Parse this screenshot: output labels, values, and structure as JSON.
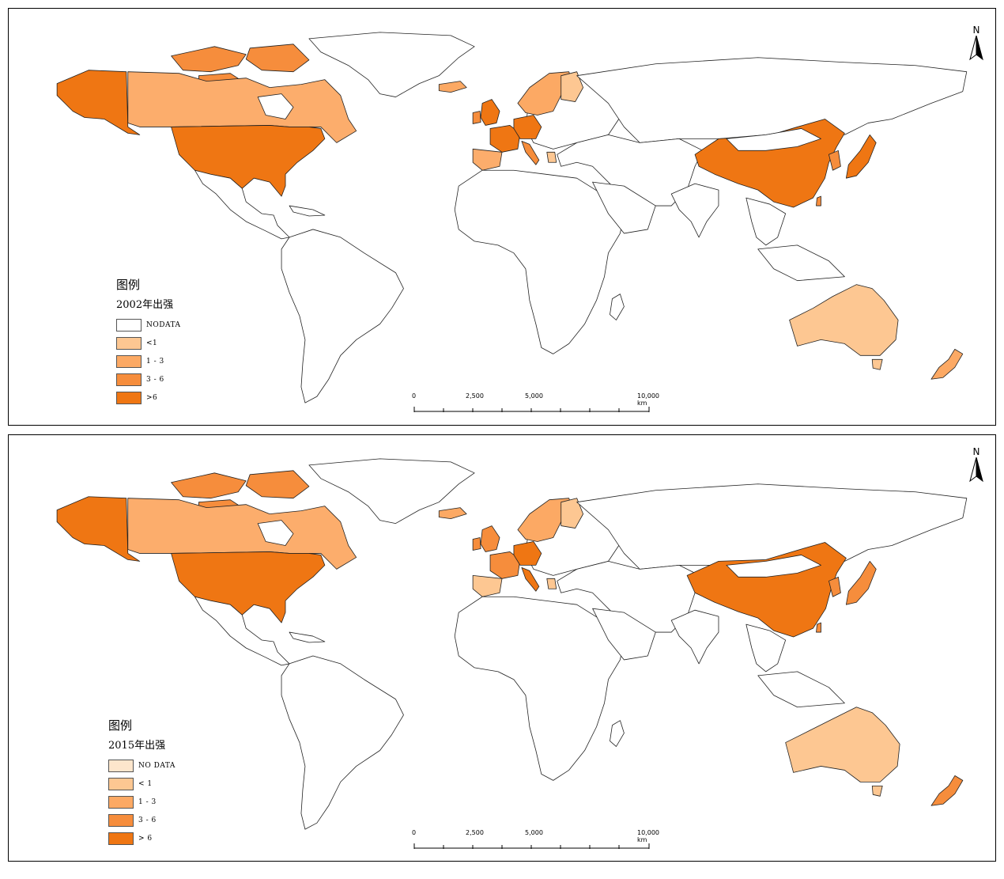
{
  "colors": {
    "nodata_top": "#ffffff",
    "nodata_bottom": "#fde6cc",
    "lt1": "#fdc792",
    "c1_3": "#fca964",
    "c3_6": "#f68d3c",
    "gt6": "#ef7613",
    "border": "#222222"
  },
  "maps": [
    {
      "legend_title": "图例",
      "legend_subtitle": "2002年出强",
      "classes": [
        {
          "label": "NODATA",
          "color": "#ffffff"
        },
        {
          "label": "<1",
          "color": "#fdc792"
        },
        {
          "label": "1 - 3",
          "color": "#fca964"
        },
        {
          "label": "3 - 6",
          "color": "#f68d3c"
        },
        {
          "label": ">6",
          "color": "#ef7613"
        }
      ],
      "north_label": "N",
      "scale_labels": [
        "0",
        "2,500",
        "5,000",
        "10,000 km"
      ]
    },
    {
      "legend_title": "图例",
      "legend_subtitle": "2015年出强",
      "classes": [
        {
          "label": "NO DATA",
          "color": "#fde6cc"
        },
        {
          "label": "< 1",
          "color": "#fdc792"
        },
        {
          "label": "1 - 3",
          "color": "#fca964"
        },
        {
          "label": "3 - 6",
          "color": "#f68d3c"
        },
        {
          "label": "> 6",
          "color": "#ef7613"
        }
      ],
      "north_label": "N",
      "scale_labels": [
        "0",
        "2,500",
        "5,000",
        "10,000 km"
      ]
    }
  ]
}
